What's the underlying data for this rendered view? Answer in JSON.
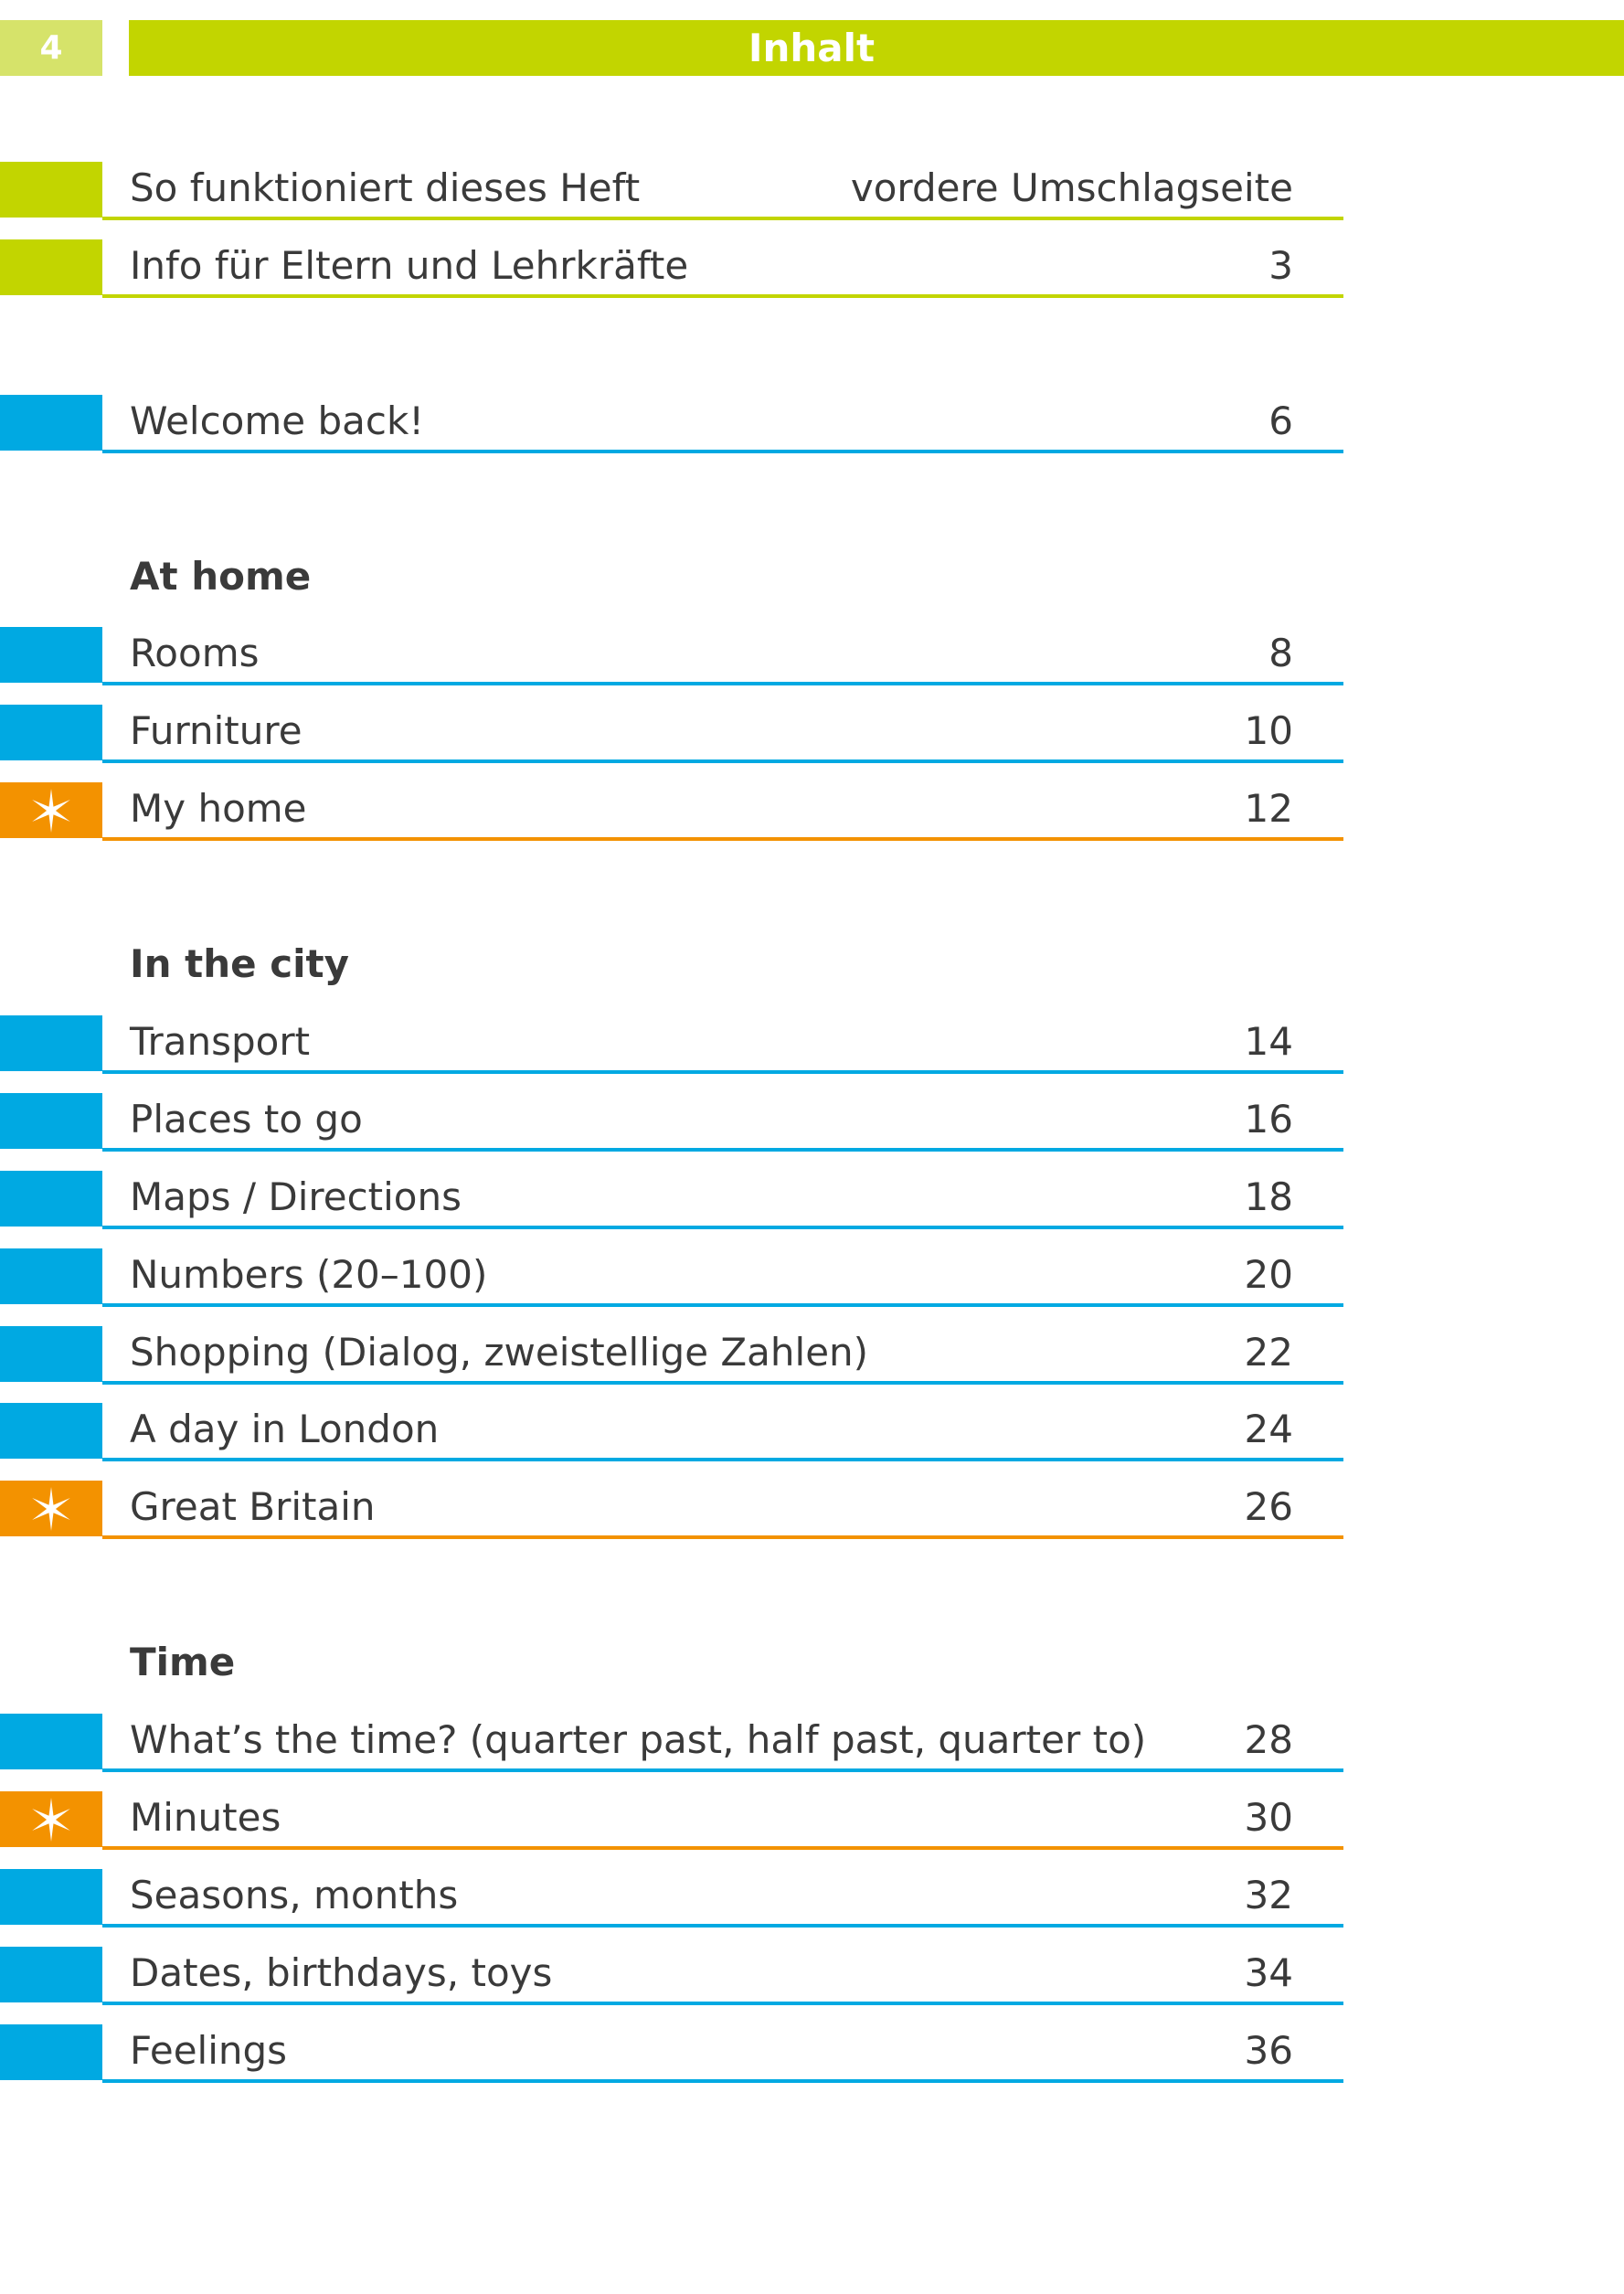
{
  "header": {
    "page_number": "4",
    "title": "Inhalt"
  },
  "groups": [
    {
      "items": [
        {
          "label": "So funktioniert dieses Heft",
          "page": "vordere Umschlagseite",
          "color": "#c2d500"
        },
        {
          "label": "Info für Eltern und Lehrkräfte",
          "page": 3,
          "color": "#c2d500"
        }
      ]
    },
    {
      "items": [
        {
          "label": "Welcome back!",
          "page": 6,
          "color": "#00a9e2"
        }
      ]
    },
    {
      "heading": "At home",
      "items": [
        {
          "label": "Rooms",
          "page": 8,
          "color": "#00a9e2"
        },
        {
          "label": "Furniture",
          "page": 10,
          "color": "#00a9e2"
        },
        {
          "label": "My home",
          "page": 12,
          "color": "#f39200",
          "icon": "star"
        }
      ]
    },
    {
      "heading": "In the city",
      "items": [
        {
          "label": "Transport",
          "page": 14,
          "color": "#00a9e2"
        },
        {
          "label": "Places to go",
          "page": 16,
          "color": "#00a9e2"
        },
        {
          "label": "Maps / Directions",
          "page": 18,
          "color": "#00a9e2"
        },
        {
          "label": "Numbers (20–100)",
          "page": 20,
          "color": "#00a9e2"
        },
        {
          "label": "Shopping (Dialog, zweistellige Zahlen)",
          "page": 22,
          "color": "#00a9e2"
        },
        {
          "label": "A day in London",
          "page": 24,
          "color": "#00a9e2"
        },
        {
          "label": "Great Britain",
          "page": 26,
          "color": "#f39200",
          "icon": "star"
        }
      ]
    },
    {
      "heading": "Time",
      "items": [
        {
          "label": "What’s the time? (quarter past, half past, quarter to)",
          "page": 28,
          "color": "#00a9e2"
        },
        {
          "label": "Minutes",
          "page": 30,
          "color": "#f39200",
          "icon": "star"
        },
        {
          "label": "Seasons, months",
          "page": 32,
          "color": "#00a9e2"
        },
        {
          "label": "Dates, birthdays, toys",
          "page": 34,
          "color": "#00a9e2"
        },
        {
          "label": "Feelings",
          "page": 36,
          "color": "#00a9e2"
        }
      ]
    }
  ]
}
